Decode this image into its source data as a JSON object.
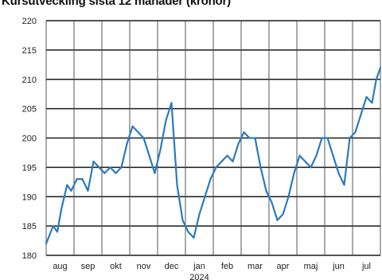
{
  "chart_data": {
    "type": "line",
    "title": "Kursutveckling sista 12 månader (kronor)",
    "xlabel": "",
    "ylabel": "",
    "ylim": [
      180,
      220
    ],
    "yticks": [
      180,
      185,
      190,
      195,
      200,
      205,
      210,
      215,
      220
    ],
    "months": [
      "aug",
      "sep",
      "okt",
      "nov",
      "dec",
      "jan",
      "feb",
      "mar",
      "apr",
      "maj",
      "jun",
      "jul"
    ],
    "year_label": "2024",
    "grid": true,
    "line_color": "#2a7bbf",
    "series": [
      {
        "x": [
          0,
          0.25,
          0.4,
          0.55,
          0.75,
          0.9,
          1.1,
          1.3,
          1.5,
          1.7,
          1.9,
          2.1,
          2.3,
          2.5,
          2.7,
          2.9,
          3.1,
          3.3,
          3.5,
          3.7,
          3.9,
          4.1,
          4.3,
          4.5,
          4.7,
          4.9,
          5.1,
          5.3,
          5.5,
          5.7,
          5.9,
          6.1,
          6.3,
          6.5,
          6.7,
          6.9,
          7.1,
          7.3,
          7.5,
          7.7,
          7.9,
          8.1,
          8.3,
          8.5,
          8.7,
          8.9,
          9.1,
          9.3,
          9.5,
          9.7,
          9.9,
          10.1,
          10.3,
          10.5,
          10.7,
          10.9,
          11.1,
          11.3,
          11.5,
          11.7,
          11.85,
          12.0
        ],
        "values": [
          182,
          185,
          184,
          188,
          192,
          191,
          193,
          193,
          191,
          196,
          195,
          194,
          195,
          194,
          195,
          199,
          202,
          201,
          200,
          197,
          194,
          198,
          203,
          206,
          192,
          186,
          184,
          183,
          187,
          190,
          193,
          195,
          196,
          197,
          196,
          199,
          201,
          200,
          200,
          195,
          191,
          189,
          186,
          187,
          190,
          194,
          197,
          196,
          195,
          197,
          200,
          200,
          197,
          194,
          192,
          200,
          201,
          204,
          207,
          206,
          210,
          212
        ]
      }
    ]
  }
}
